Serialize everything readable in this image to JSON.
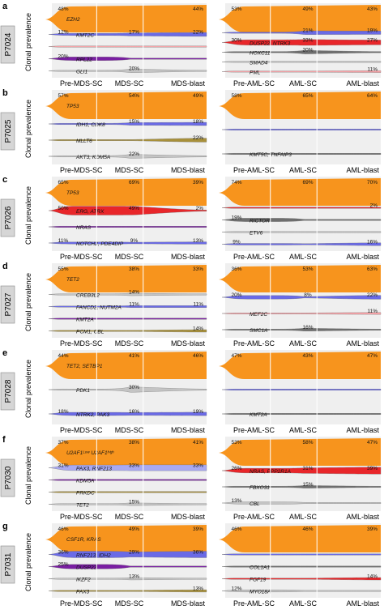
{
  "y_axis_label": "Clonal prevalence",
  "colors": {
    "orange": "#f7941d",
    "blue": "#6a6ae6",
    "lightblue": "#a9a9f2",
    "red": "#e8262a",
    "purple": "#7a1fa2",
    "gray": "#c4c4c4",
    "darkgray": "#6e6e6e",
    "olive": "#a8903a",
    "pink": "#f7a3a8",
    "panel_bg": "#efefef",
    "label_box": "#d6d6d6"
  },
  "rows": [
    {
      "letter": "a",
      "patient": "P7024",
      "mds": {
        "x_labels": [
          "Pre-MDS-SC",
          "MDS-SC",
          "MDS-blast"
        ],
        "clones": [
          {
            "name": "EZH2",
            "color": "orange",
            "values": [
              "48%",
              "",
              "44%"
            ]
          },
          {
            "name": "KMT2C",
            "color": "blue",
            "values": [
              "12%",
              "17%",
              "22%"
            ]
          },
          {
            "name": "",
            "color": "pink",
            "values": [
              "",
              "",
              ""
            ]
          },
          {
            "name": "RPL22",
            "color": "purple",
            "values": [
              "20%",
              "",
              ""
            ]
          },
          {
            "name": "GLI1",
            "color": "gray",
            "values": [
              "",
              "20%",
              ""
            ]
          }
        ]
      },
      "aml": {
        "x_labels": [
          "Pre-AML-SC",
          "AML-SC",
          "AML-blast"
        ],
        "clones": [
          {
            "name": "",
            "color": "orange",
            "values": [
              "53%",
              "49%",
              "43%"
            ]
          },
          {
            "name": "",
            "color": "blue",
            "values": [
              "",
              "21%",
              "19%"
            ]
          },
          {
            "name": "DUSP22, NTRK3",
            "color": "red",
            "values": [
              "30%",
              "33%",
              "27%"
            ]
          },
          {
            "name": "HOXC11",
            "color": "darkgray",
            "values": [
              "",
              "20%",
              ""
            ]
          },
          {
            "name": "SMAD4",
            "color": "gray",
            "values": [
              "",
              "",
              ""
            ]
          },
          {
            "name": "PML",
            "color": "pink",
            "values": [
              "",
              "",
              "11%"
            ]
          }
        ]
      }
    },
    {
      "letter": "b",
      "patient": "P7025",
      "mds": {
        "x_labels": [
          "Pre-MDS-SC",
          "MDS-SC",
          "MDS-blast"
        ],
        "clones": [
          {
            "name": "TP53",
            "color": "orange",
            "values": [
              "57%",
              "54%",
              "49%"
            ]
          },
          {
            "name": "IDH1, CDK8",
            "color": "blue",
            "values": [
              "",
              "15%",
              "18%"
            ]
          },
          {
            "name": "MLLT6",
            "color": "olive",
            "values": [
              "",
              "",
              "22%"
            ]
          },
          {
            "name": "AKT3, KDM5A",
            "color": "gray",
            "values": [
              "",
              "22%",
              ""
            ]
          }
        ]
      },
      "aml": {
        "x_labels": [
          "Pre-AML-SC",
          "AML-SC",
          "AML-blast"
        ],
        "clones": [
          {
            "name": "",
            "color": "orange",
            "values": [
              "58%",
              "65%",
              "64%"
            ]
          },
          {
            "name": "",
            "color": "blue",
            "values": [
              "",
              "",
              ""
            ]
          },
          {
            "name": "KMT5C, TNFAIP3",
            "color": "darkgray",
            "values": [
              "",
              "",
              ""
            ]
          }
        ]
      }
    },
    {
      "letter": "c",
      "patient": "P7026",
      "mds": {
        "x_labels": [
          "Pre-MDS-SC",
          "MDS-SC",
          "MDS-blast"
        ],
        "clones": [
          {
            "name": "TP53",
            "color": "orange",
            "values": [
              "65%",
              "69%",
              "39%"
            ]
          },
          {
            "name": "ERG, ATRX",
            "color": "red",
            "values": [
              "50%",
              "49%",
              "2%"
            ]
          },
          {
            "name": "NRAS",
            "color": "purple",
            "values": [
              "",
              "",
              ""
            ]
          },
          {
            "name": "NOTCH2, PDE4DIP",
            "color": "blue",
            "values": [
              "11%",
              "9%",
              "13%"
            ]
          }
        ]
      },
      "aml": {
        "x_labels": [
          "Pre-AML-SC",
          "AML-SC",
          "AML-blast"
        ],
        "clones": [
          {
            "name": "",
            "color": "orange",
            "values": [
              "74%",
              "69%",
              "70%"
            ]
          },
          {
            "name": "",
            "color": "red",
            "values": [
              "",
              "",
              "2%"
            ]
          },
          {
            "name": "RICTOR",
            "color": "darkgray",
            "values": [
              "19%",
              "",
              ""
            ]
          },
          {
            "name": "ETV6",
            "color": "gray",
            "values": [
              "",
              "",
              ""
            ]
          },
          {
            "name": "",
            "color": "blue",
            "values": [
              "9%",
              "",
              "16%"
            ]
          }
        ]
      }
    },
    {
      "letter": "d",
      "patient": "P7027",
      "mds": {
        "x_labels": [
          "Pre-MDS-SC",
          "MDS-SC",
          "MDS-blast"
        ],
        "clones": [
          {
            "name": "TET2",
            "color": "orange",
            "values": [
              "55%",
              "38%",
              "33%"
            ]
          },
          {
            "name": "CREB3L2",
            "color": "gray",
            "values": [
              "",
              "14%",
              ""
            ]
          },
          {
            "name": "FANCD2, NUTM2A",
            "color": "blue",
            "values": [
              "",
              "11%",
              "11%"
            ]
          },
          {
            "name": "KMT2A",
            "color": "purple",
            "values": [
              "",
              "",
              ""
            ]
          },
          {
            "name": "PCM1, CBL",
            "color": "olive",
            "values": [
              "",
              "",
              "14%"
            ]
          }
        ]
      },
      "aml": {
        "x_labels": [
          "Pre-AML-SC",
          "AML-SC",
          "AML-blast"
        ],
        "clones": [
          {
            "name": "",
            "color": "orange",
            "values": [
              "36%",
              "53%",
              "63%"
            ]
          },
          {
            "name": "",
            "color": "blue",
            "values": [
              "20%",
              "8%",
              "22%"
            ]
          },
          {
            "name": "MEF2C",
            "color": "pink",
            "values": [
              "",
              "",
              "11%"
            ]
          },
          {
            "name": "SMC1A",
            "color": "darkgray",
            "values": [
              "",
              "16%",
              ""
            ]
          }
        ]
      }
    },
    {
      "letter": "e",
      "patient": "P7028",
      "mds": {
        "x_labels": [
          "Pre-MDS-SC",
          "MDS-SC",
          "MDS-blast"
        ],
        "clones": [
          {
            "name": "TET2, SETBP1",
            "color": "orange",
            "values": [
              "44%",
              "41%",
              "46%"
            ]
          },
          {
            "name": "PDK1",
            "color": "gray",
            "values": [
              "",
              "30%",
              ""
            ]
          },
          {
            "name": "NTRK2, PAK3",
            "color": "blue",
            "values": [
              "18%",
              "16%",
              "19%"
            ]
          }
        ]
      },
      "aml": {
        "x_labels": [
          "Pre-AML-SC",
          "AML-SC",
          "AML-blast"
        ],
        "clones": [
          {
            "name": "",
            "color": "orange",
            "values": [
              "47%",
              "43%",
              "47%"
            ]
          },
          {
            "name": "",
            "color": "blue",
            "values": [
              "",
              "",
              ""
            ]
          },
          {
            "name": "KMT2A",
            "color": "darkgray",
            "values": [
              "",
              "",
              ""
            ]
          }
        ]
      }
    },
    {
      "letter": "f",
      "patient": "P7030",
      "mds": {
        "x_labels": [
          "Pre-MDS-SC",
          "MDS-SC",
          "MDS-blast"
        ],
        "clones": [
          {
            "name": "U2AF1ᴸᵒʷ U2AF1ʰⁱᵍʰ",
            "color": "orange",
            "values": [
              "37%",
              "38%",
              "41%"
            ]
          },
          {
            "name": "PAX3, RNF213",
            "color": "lightblue",
            "values": [
              "31%",
              "33%",
              "33%"
            ]
          },
          {
            "name": "KDM5A",
            "color": "purple",
            "values": [
              "",
              "",
              ""
            ]
          },
          {
            "name": "PRKDC",
            "color": "olive",
            "values": [
              "",
              "",
              ""
            ]
          },
          {
            "name": "TET2",
            "color": "gray",
            "values": [
              "",
              "15%",
              ""
            ]
          }
        ]
      },
      "aml": {
        "x_labels": [
          "Pre-AML-SC",
          "AML-SC",
          "AML-blast"
        ],
        "clones": [
          {
            "name": "",
            "color": "orange",
            "values": [
              "53%",
              "58%",
              "47%"
            ]
          },
          {
            "name": "NRAS, PPP2R1A",
            "color": "red",
            "values": [
              "26%",
              "31%",
              "39%"
            ]
          },
          {
            "name": "FBXO31",
            "color": "darkgray",
            "values": [
              "",
              "15%",
              ""
            ]
          },
          {
            "name": "CBL",
            "color": "gray",
            "values": [
              "13%",
              "",
              ""
            ]
          }
        ]
      }
    },
    {
      "letter": "g",
      "patient": "P7031",
      "mds": {
        "x_labels": [
          "Pre-MDS-SC",
          "MDS-SC",
          "MDS-blast"
        ],
        "clones": [
          {
            "name": "CSF1R, KRAS",
            "color": "orange",
            "values": [
              "46%",
              "49%",
              "39%"
            ]
          },
          {
            "name": "RNF213, IDH2",
            "color": "blue",
            "values": [
              "36%",
              "29%",
              "36%"
            ]
          },
          {
            "name": "DUSP22",
            "color": "purple",
            "values": [
              "25%",
              "",
              ""
            ]
          },
          {
            "name": "IKZF2",
            "color": "gray",
            "values": [
              "",
              "13%",
              ""
            ]
          },
          {
            "name": "PAX3",
            "color": "olive",
            "values": [
              "",
              "",
              "13%"
            ]
          }
        ]
      },
      "aml": {
        "x_labels": [
          "Pre-AML-SC",
          "AML-SC",
          "AML-blast"
        ],
        "clones": [
          {
            "name": "",
            "color": "orange",
            "values": [
              "46%",
              "46%",
              "39%"
            ]
          },
          {
            "name": "",
            "color": "blue",
            "values": [
              "",
              "",
              ""
            ]
          },
          {
            "name": "COL1A1",
            "color": "darkgray",
            "values": [
              "",
              "",
              ""
            ]
          },
          {
            "name": "FGF19",
            "color": "red",
            "values": [
              "",
              "",
              "14%"
            ]
          },
          {
            "name": "MYO18A",
            "color": "gray",
            "values": [
              "12%",
              "",
              ""
            ]
          }
        ]
      }
    }
  ]
}
